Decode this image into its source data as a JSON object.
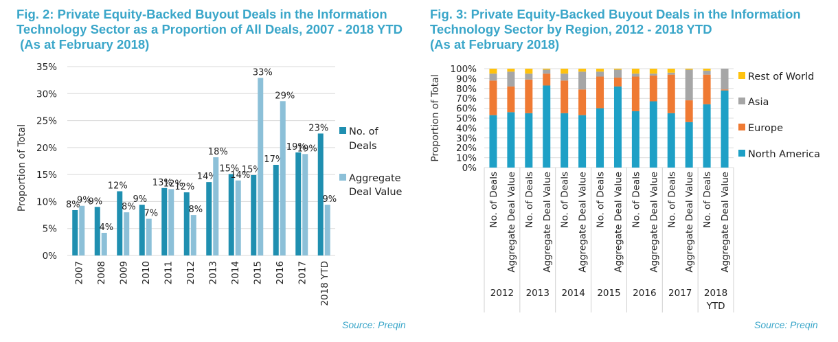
{
  "figures": {
    "fig2": {
      "title": "Fig. 2: Private Equity-Backed Buyout Deals in the Information Technology Sector as a Proportion of All Deals, 2007 - 2018 YTD  (As at February 2018)",
      "source": "Source: Preqin"
    },
    "fig3": {
      "title": "Fig. 3: Private Equity-Backed Buyout Deals in the Information Technology Sector by Region, 2012 - 2018 YTD (As at February 2018)",
      "source": "Source: Preqin"
    }
  },
  "chart_data": [
    {
      "type": "bar",
      "title": "Fig. 2: Private Equity-Backed Buyout Deals in the Information Technology Sector as a Proportion of All Deals, 2007 - 2018 YTD (As at February 2018)",
      "xlabel": "",
      "ylabel": "Proportion of Total",
      "ylim": [
        0,
        35
      ],
      "yticks": [
        "0%",
        "5%",
        "10%",
        "15%",
        "20%",
        "25%",
        "30%",
        "35%"
      ],
      "grid": true,
      "legend_position": "right",
      "categories": [
        "2007",
        "2008",
        "2009",
        "2010",
        "2011",
        "2012",
        "2013",
        "2014",
        "2015",
        "2016",
        "2017",
        "2018 YTD"
      ],
      "series": [
        {
          "name": "No. of Deals",
          "color": "#1f8fb0",
          "values": [
            8.4,
            9.0,
            11.9,
            9.4,
            12.5,
            11.7,
            13.6,
            15.1,
            14.9,
            16.8,
            19.1,
            22.6
          ],
          "labels": [
            "8%",
            "9%",
            "12%",
            "9%",
            "13%",
            "12%",
            "14%",
            "15%",
            "15%",
            "17%",
            "19%",
            "23%"
          ]
        },
        {
          "name": "Aggregate Deal Value",
          "color": "#8cc0d8",
          "values": [
            9.2,
            4.2,
            8.0,
            6.8,
            12.3,
            7.5,
            18.2,
            13.9,
            32.9,
            28.6,
            18.8,
            9.4
          ],
          "labels": [
            "9%",
            "4%",
            "8%",
            "7%",
            "12%",
            "8%",
            "18%",
            "14%",
            "33%",
            "29%",
            "19%",
            "9%"
          ]
        }
      ],
      "legend": [
        "No. of Deals",
        "Aggregate Deal Value"
      ]
    },
    {
      "type": "bar",
      "stacked": true,
      "title": "Fig. 3: Private Equity-Backed Buyout Deals in the Information Technology Sector by Region, 2012 - 2018 YTD (As at February 2018)",
      "xlabel": "",
      "ylabel": "Proportion of Total",
      "ylim": [
        0,
        100
      ],
      "yticks": [
        "0%",
        "10%",
        "20%",
        "30%",
        "40%",
        "50%",
        "60%",
        "70%",
        "80%",
        "90%",
        "100%"
      ],
      "grid": true,
      "legend_position": "right",
      "groups": [
        "2012",
        "2013",
        "2014",
        "2015",
        "2016",
        "2017",
        "2018 YTD"
      ],
      "categories": [
        "No. of Deals",
        "Aggregate Deal Value",
        "No. of Deals",
        "Aggregate Deal Value",
        "No. of Deals",
        "Aggregate Deal Value",
        "No. of Deals",
        "Aggregate Deal Value",
        "No. of Deals",
        "Aggregate Deal Value",
        "No. of Deals",
        "Aggregate Deal Value",
        "No. of Deals",
        "Aggregate Deal Value"
      ],
      "series": [
        {
          "name": "North America",
          "color": "#1ea0c6",
          "values": [
            53,
            56,
            55,
            83,
            55,
            53,
            60,
            82,
            57,
            67,
            55,
            46,
            64,
            78
          ]
        },
        {
          "name": "Europe",
          "color": "#ef7a33",
          "values": [
            35,
            26,
            34,
            12,
            33,
            26,
            32,
            9,
            35,
            26,
            39,
            22,
            30,
            1
          ]
        },
        {
          "name": "Asia",
          "color": "#a6a6a6",
          "values": [
            7,
            15,
            6,
            4,
            7,
            18,
            5,
            8,
            3,
            2,
            2,
            31,
            4,
            21
          ]
        },
        {
          "name": "Rest of World",
          "color": "#ffc20e",
          "values": [
            5,
            3,
            5,
            1,
            5,
            3,
            3,
            1,
            5,
            5,
            4,
            1,
            2,
            0
          ]
        }
      ],
      "legend": [
        "Rest of World",
        "Asia",
        "Europe",
        "North America"
      ]
    }
  ]
}
